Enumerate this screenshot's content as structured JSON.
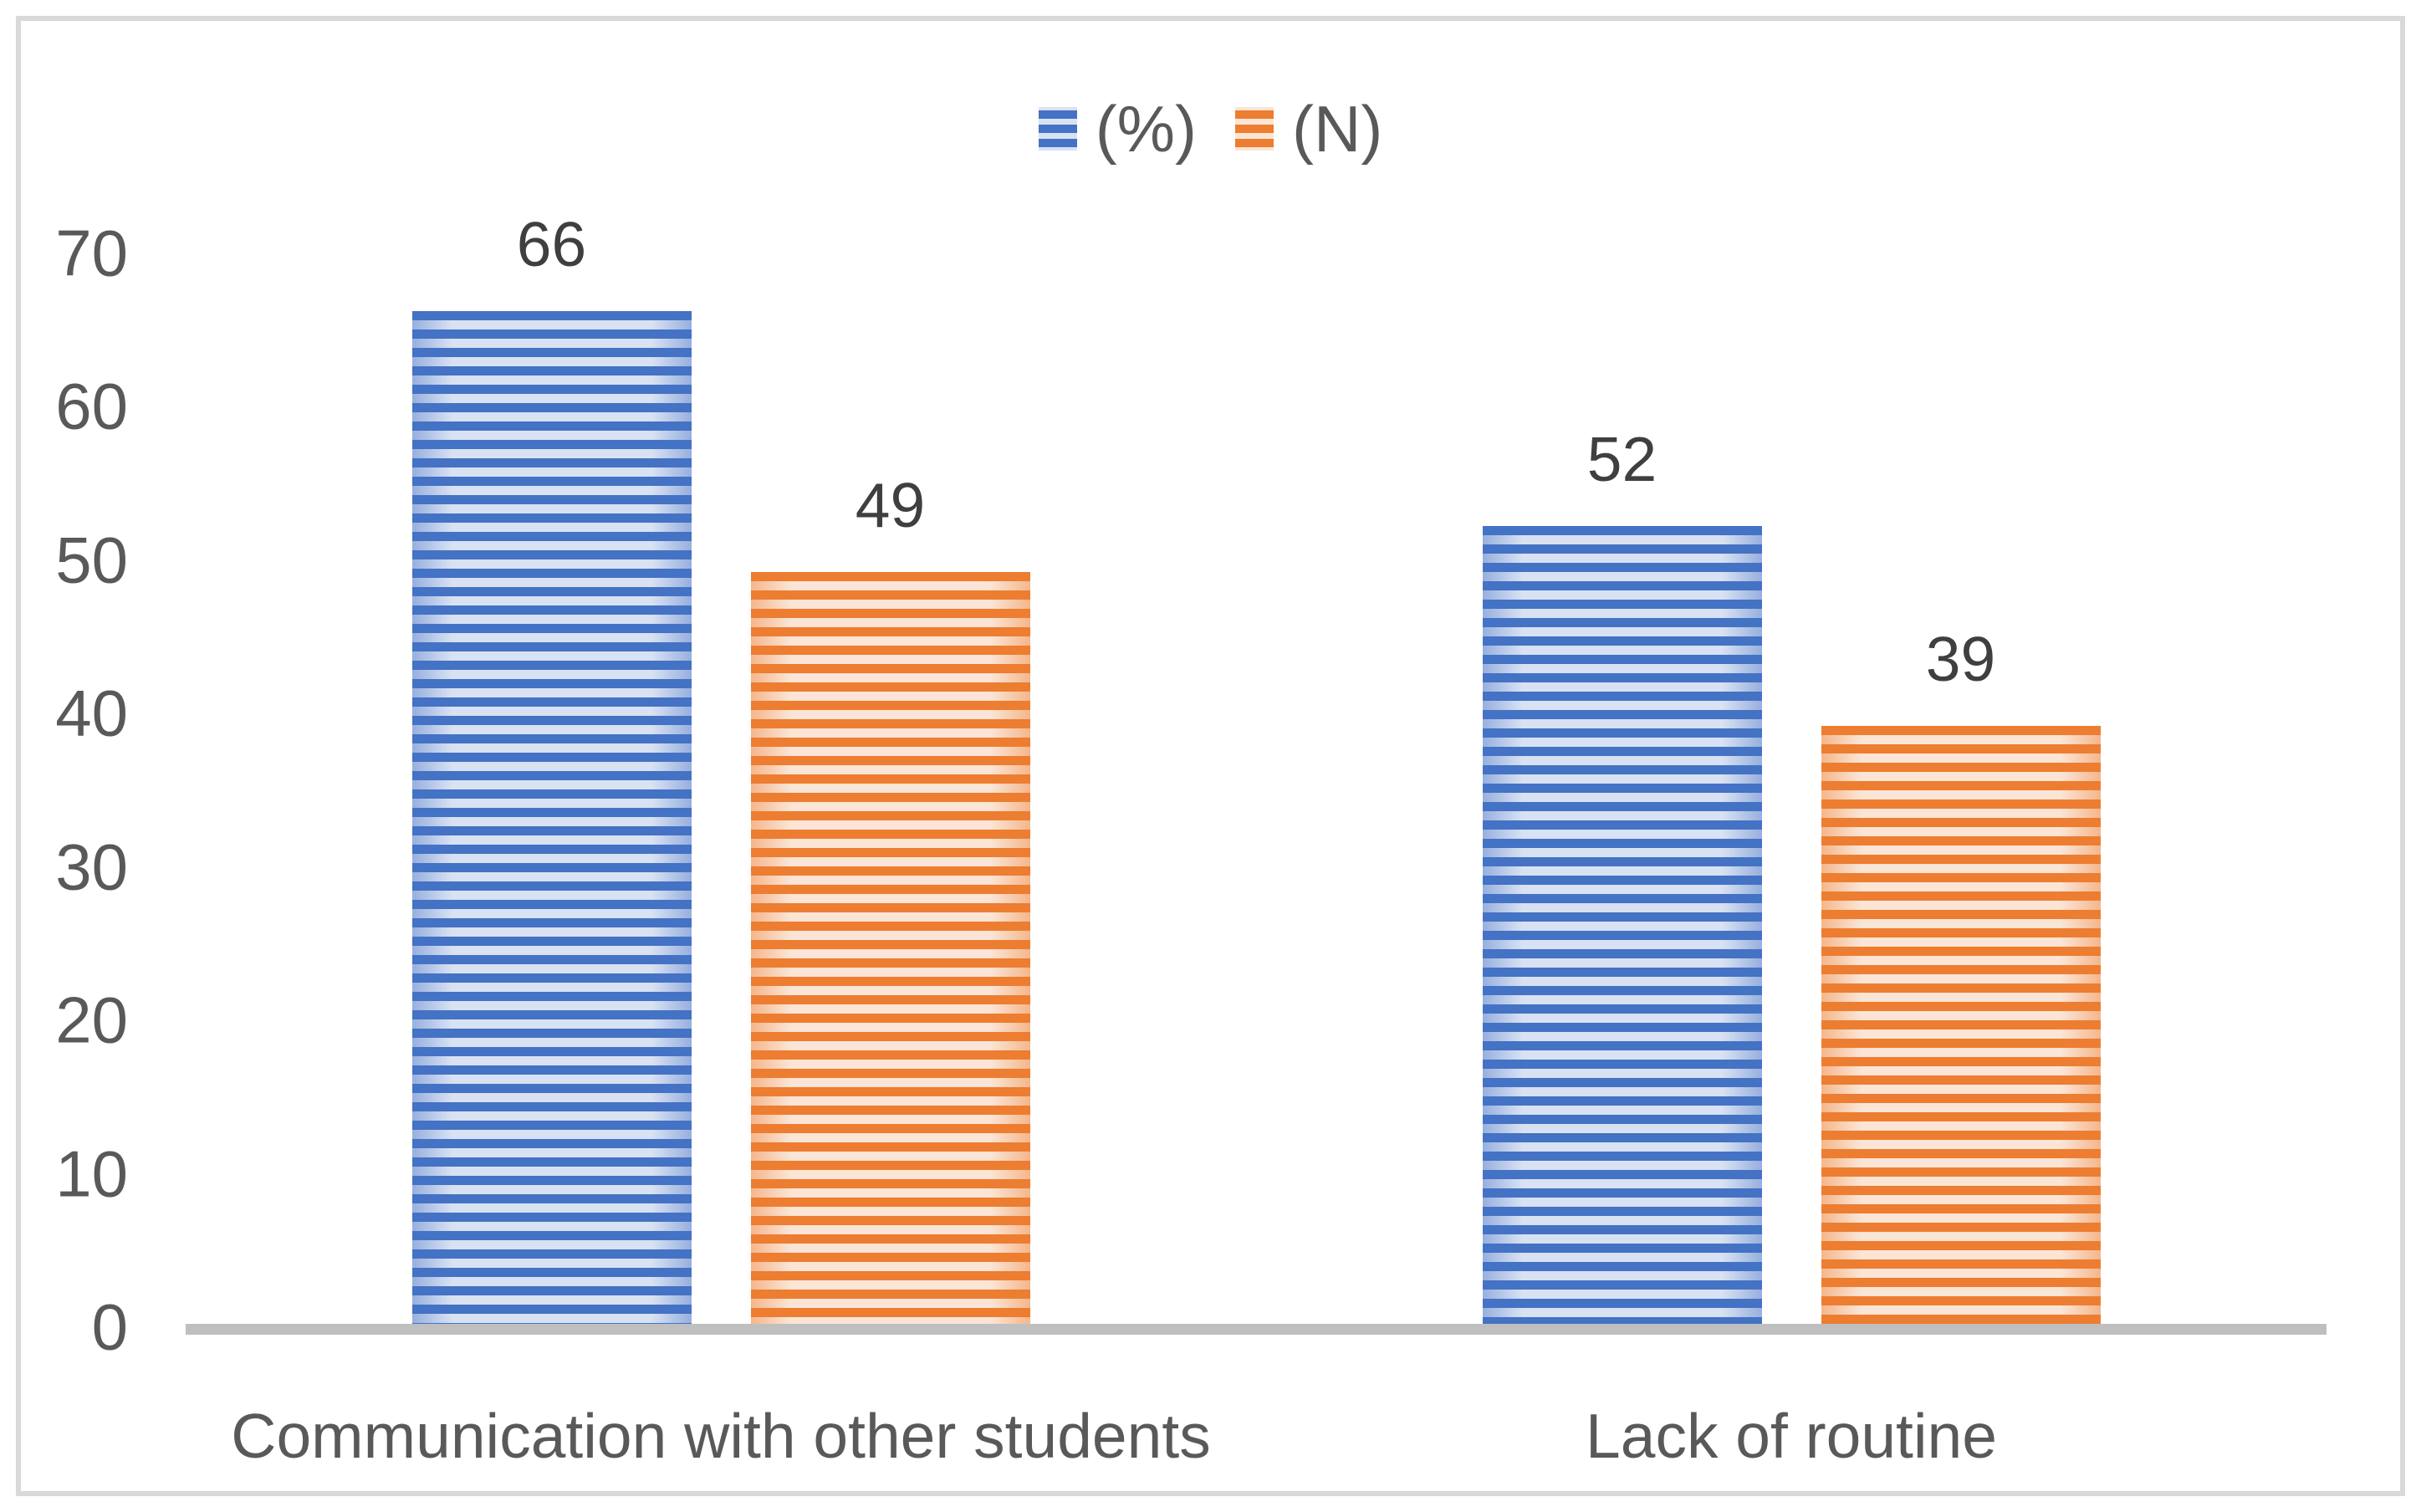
{
  "chart_data": {
    "type": "bar",
    "title": "",
    "categories": [
      "Communication with other students",
      "Lack of routine"
    ],
    "series": [
      {
        "name": "(%)",
        "values": [
          66,
          52
        ],
        "color": "#4472C4",
        "stripe_light": "#D9E2F3"
      },
      {
        "name": "(N)",
        "values": [
          49,
          39
        ],
        "color": "#ED7D31",
        "stripe_light": "#FBE5D6"
      }
    ],
    "ylim": [
      0,
      70
    ],
    "yticks": [
      0,
      10,
      20,
      30,
      40,
      50,
      60,
      70
    ],
    "xlabel": "",
    "ylabel": "",
    "grid": false,
    "legend_position": "top-center",
    "show_data_labels": true,
    "data_labels": {
      "pct": [
        66,
        52
      ],
      "n": [
        49,
        39
      ]
    }
  },
  "colors": {
    "axis_line": "#BFBFBF",
    "tick_text": "#595959",
    "category_text": "#595959",
    "data_label_text": "#3F3F3F",
    "legend_text": "#595959",
    "frame_border": "#D9D9D9",
    "background": "#FFFFFF"
  }
}
